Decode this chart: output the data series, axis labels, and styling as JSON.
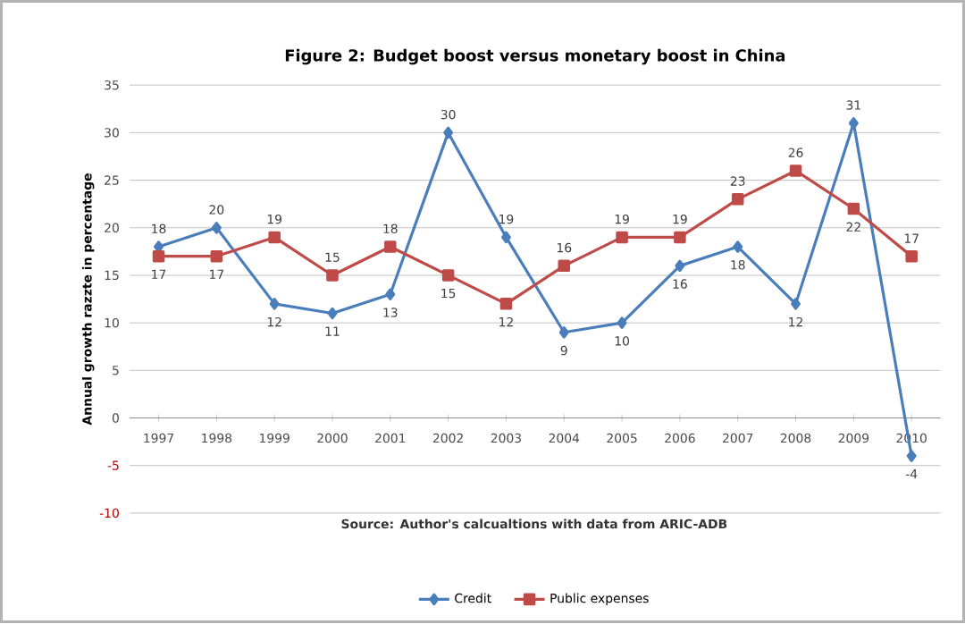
{
  "chart_data": {
    "type": "line",
    "title": "Figure 2: Budget boost versus monetary boost in China",
    "ylabel": "Annual growth razzte in percentage",
    "categories": [
      "1997",
      "1998",
      "1999",
      "2000",
      "2001",
      "2002",
      "2003",
      "2004",
      "2005",
      "2006",
      "2007",
      "2008",
      "2009",
      "2010"
    ],
    "series": [
      {
        "name": "Credit",
        "color": "#4a7ebb",
        "marker": "diamond",
        "values": [
          18,
          20,
          12,
          11,
          13,
          30,
          19,
          9,
          10,
          16,
          18,
          12,
          31,
          -4
        ]
      },
      {
        "name": "Public expenses",
        "color": "#be4b48",
        "marker": "square",
        "values": [
          17,
          17,
          19,
          15,
          18,
          15,
          12,
          16,
          19,
          19,
          23,
          26,
          22,
          17
        ]
      }
    ],
    "ylim": [
      -10,
      35
    ],
    "yticks": [
      -10,
      -5,
      0,
      5,
      10,
      15,
      20,
      25,
      30,
      35
    ],
    "grid": "y",
    "legend": "bottom",
    "data_labels": true,
    "annotations": [
      "Source: Author's calcualtions  with data from ARIC-ADB"
    ]
  }
}
